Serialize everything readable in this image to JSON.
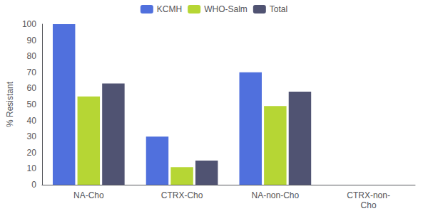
{
  "chart_data": {
    "type": "bar",
    "categories": [
      "NA-Cho",
      "CTRX-Cho",
      "NA-non-Cho",
      "CTRX-non-\nCho"
    ],
    "series": [
      {
        "name": "KCMH",
        "values": [
          100,
          30,
          70,
          0
        ]
      },
      {
        "name": "WHO-Salm",
        "values": [
          55,
          11,
          49,
          0
        ]
      },
      {
        "name": "Total",
        "values": [
          63,
          15,
          58,
          0
        ]
      }
    ],
    "ylabel": "% Resistant",
    "ylim": [
      0,
      100
    ],
    "yticks": [
      0,
      10,
      20,
      30,
      40,
      50,
      60,
      70,
      80,
      90,
      100
    ],
    "grid": false,
    "legend": "top"
  }
}
